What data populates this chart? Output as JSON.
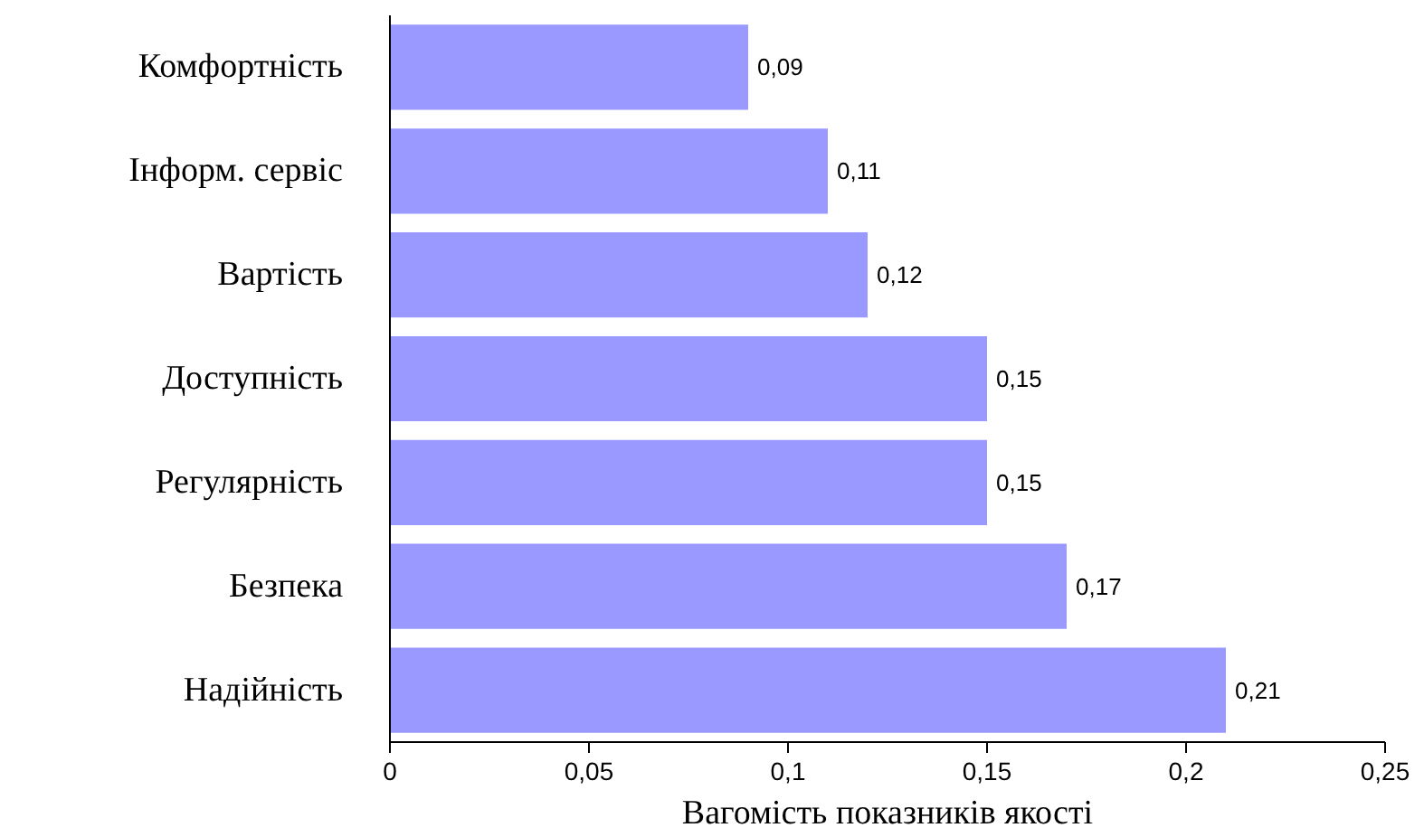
{
  "chart_data": {
    "type": "bar",
    "orientation": "horizontal",
    "xlabel": "Вагомість показників якості",
    "categories": [
      "Комфортність",
      "Інформ. сервіс",
      "Вартість",
      "Доступність",
      "Регулярність",
      "Безпека",
      "Надійність"
    ],
    "values": [
      0.09,
      0.11,
      0.12,
      0.15,
      0.15,
      0.17,
      0.21
    ],
    "value_labels": [
      "0,09",
      "0,11",
      "0,12",
      "0,15",
      "0,15",
      "0,17",
      "0,21"
    ],
    "color": "#9999ff",
    "xlim": [
      0,
      0.25
    ],
    "xticks": [
      0,
      {
        "value": 0.05,
        "label": "0,05"
      },
      {
        "value": 0.1,
        "label": "0,1"
      },
      {
        "value": 0.15,
        "label": "0,15"
      },
      {
        "value": 0.2,
        "label": "0,2"
      },
      {
        "value": 0.25,
        "label": "0,25"
      }
    ],
    "grid": false
  }
}
